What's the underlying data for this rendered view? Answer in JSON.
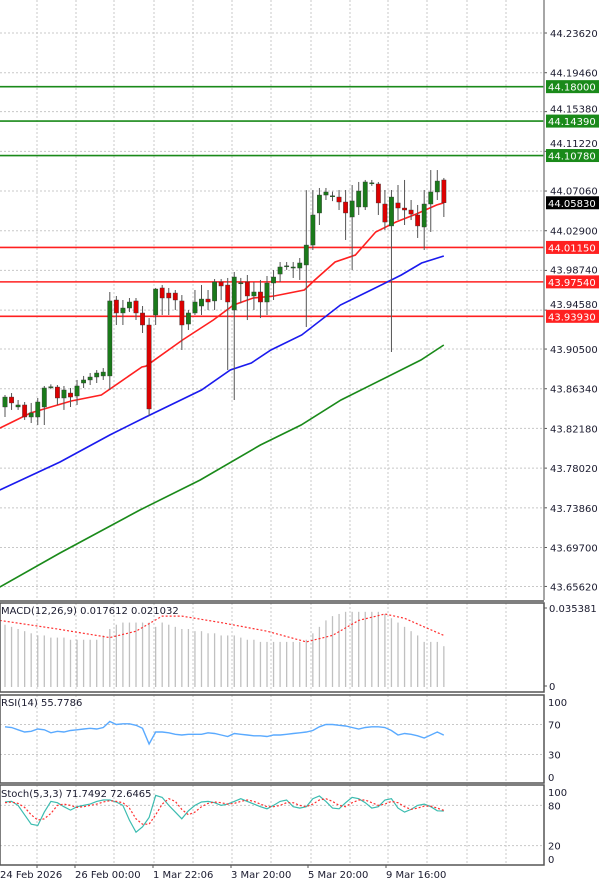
{
  "chart_data": [
    {
      "type": "candlestick",
      "title": "",
      "ylim": [
        43.642,
        44.2708
      ],
      "grid": true,
      "price_ticks": [
        "44.23620",
        "44.19460",
        "44.15380",
        "44.11220",
        "44.07060",
        "44.02900",
        "43.98740",
        "43.94580",
        "43.90500",
        "43.86340",
        "43.82180",
        "43.78020",
        "43.73860",
        "43.69700",
        "43.65620"
      ],
      "current_price": {
        "label": "44.05830",
        "value": 44.0583,
        "color": "#000000"
      },
      "levels": [
        {
          "label": "44.18000",
          "value": 44.18,
          "color": "#1a8a1a"
        },
        {
          "label": "44.14390",
          "value": 44.1439,
          "color": "#1a8a1a"
        },
        {
          "label": "44.10780",
          "value": 44.1078,
          "color": "#1a8a1a"
        },
        {
          "label": "44.01150",
          "value": 44.0115,
          "color": "#ff2020"
        },
        {
          "label": "43.97540",
          "value": 43.9754,
          "color": "#ff2020"
        },
        {
          "label": "43.93930",
          "value": 43.9393,
          "color": "#ff2020"
        }
      ],
      "candle_colors": {
        "up": "#1a7a1a",
        "down": "#dd0000",
        "wick": "#555555"
      },
      "candles_ohlc": [
        [
          43.8443,
          43.8568,
          43.8338,
          43.8547
        ],
        [
          43.8547,
          43.8589,
          43.8412,
          43.8485
        ],
        [
          43.8443,
          43.8516,
          43.8412,
          43.8464
        ],
        [
          43.8464,
          43.8495,
          43.8307,
          43.8338
        ],
        [
          43.8338,
          43.8485,
          43.8275,
          43.838
        ],
        [
          43.8338,
          43.8537,
          43.8254,
          43.8495
        ],
        [
          43.8443,
          43.8663,
          43.8254,
          43.8642
        ],
        [
          43.8652,
          43.868,
          43.863,
          43.8655
        ],
        [
          43.8652,
          43.8673,
          43.8464,
          43.8537
        ],
        [
          43.8537,
          43.8663,
          43.8412,
          43.8621
        ],
        [
          43.8589,
          43.8642,
          43.8443,
          43.8547
        ],
        [
          43.8558,
          43.8726,
          43.8464,
          43.8663
        ],
        [
          43.8694,
          43.8768,
          43.8642,
          43.8726
        ],
        [
          43.8726,
          43.8799,
          43.8673,
          43.8757
        ],
        [
          43.8757,
          43.883,
          43.8694,
          43.8799
        ],
        [
          43.8768,
          43.8851,
          43.8726,
          43.8809
        ],
        [
          43.8768,
          43.9648,
          43.8621,
          43.9554
        ],
        [
          43.9564,
          43.9606,
          43.9302,
          43.9428
        ],
        [
          43.9428,
          43.9564,
          43.9302,
          43.948
        ],
        [
          43.948,
          43.9585,
          43.9438,
          43.9543
        ],
        [
          43.9554,
          43.9585,
          43.9354,
          43.9428
        ],
        [
          43.9428,
          43.9501,
          43.9218,
          43.9302
        ],
        [
          43.9302,
          43.9375,
          43.8348,
          43.8422
        ],
        [
          43.9407,
          43.969,
          43.9302,
          43.9679
        ],
        [
          43.969,
          43.9721,
          43.9407,
          43.9585
        ],
        [
          43.9637,
          43.969,
          43.9407,
          43.9585
        ],
        [
          43.9637,
          43.9669,
          43.9459,
          43.9564
        ],
        [
          43.9554,
          43.9616,
          43.904,
          43.9302
        ],
        [
          43.9312,
          43.9459,
          43.925,
          43.9428
        ],
        [
          43.9428,
          43.9669,
          43.9407,
          43.9543
        ],
        [
          43.9501,
          43.9721,
          43.9407,
          43.9574
        ],
        [
          43.9574,
          43.9669,
          43.9459,
          43.9543
        ],
        [
          43.9554,
          43.9784,
          43.9459,
          43.9753
        ],
        [
          43.9753,
          43.9784,
          43.9564,
          43.9711
        ],
        [
          43.9721,
          43.9795,
          43.883,
          43.9543
        ],
        [
          43.9459,
          43.9858,
          43.8516,
          43.9805
        ],
        [
          43.9742,
          43.9795,
          43.953,
          43.9744
        ],
        [
          43.9753,
          43.9826,
          43.9354,
          43.9606
        ],
        [
          43.9606,
          43.9753,
          43.9459,
          43.9648
        ],
        [
          43.9648,
          43.9774,
          43.9375,
          43.9543
        ],
        [
          43.9543,
          43.9816,
          43.9407,
          43.9742
        ],
        [
          43.9742,
          43.9878,
          43.9564,
          43.9805
        ],
        [
          43.9836,
          43.9962,
          43.9753,
          43.991
        ],
        [
          43.992,
          43.9962,
          43.988,
          43.9922
        ],
        [
          43.9899,
          43.9962,
          43.9795,
          43.991
        ],
        [
          43.9899,
          44.0004,
          43.9774,
          43.9952
        ],
        [
          43.9931,
          44.0716,
          43.9281,
          44.014
        ],
        [
          44.014,
          44.0716,
          44.0088,
          44.0455
        ],
        [
          44.0476,
          44.0738,
          44.035,
          44.0664
        ],
        [
          44.0664,
          44.0738,
          44.0612,
          44.0696
        ],
        [
          44.0654,
          44.07,
          44.06,
          44.0656
        ],
        [
          44.0643,
          44.0717,
          44.0507,
          44.0591
        ],
        [
          44.0591,
          44.0717,
          44.0193,
          44.0476
        ],
        [
          44.0434,
          44.0769,
          43.9878,
          44.0602
        ],
        [
          44.0539,
          44.0801,
          44.0455,
          44.0706
        ],
        [
          44.0539,
          44.0822,
          44.0507,
          44.0801
        ],
        [
          44.079,
          44.0822,
          44.076,
          44.0792
        ],
        [
          44.078,
          44.0801,
          44.0455,
          44.0581
        ],
        [
          44.057,
          44.0717,
          44.0298,
          44.0381
        ],
        [
          44.034,
          44.0717,
          43.9019,
          44.0643
        ],
        [
          44.0581,
          44.0769,
          44.0402,
          44.0528
        ],
        [
          44.0528,
          44.0822,
          44.035,
          44.0507
        ],
        [
          44.0507,
          44.0612,
          44.0402,
          44.0465
        ],
        [
          44.0455,
          44.056,
          44.0214,
          44.034
        ],
        [
          44.0329,
          44.0717,
          44.0088,
          44.057
        ],
        [
          44.057,
          44.0926,
          44.0277,
          44.0696
        ],
        [
          44.0696,
          44.0926,
          44.0612,
          44.0811
        ],
        [
          44.0822,
          44.0843,
          44.0434,
          44.0583
        ]
      ],
      "moving_averages": [
        {
          "color": "#ff2020",
          "points": [
            [
              -0.8,
              43.8222
            ],
            [
              3.9,
              43.838
            ],
            [
              10.1,
              43.8506
            ],
            [
              14.7,
              43.8568
            ],
            [
              20.9,
              43.8862
            ],
            [
              21.5,
              43.887
            ],
            [
              27.1,
              43.9145
            ],
            [
              31.8,
              43.9354
            ],
            [
              34.9,
              43.9512
            ],
            [
              37.9,
              43.9585
            ],
            [
              41.1,
              43.9606
            ],
            [
              45.7,
              43.9669
            ],
            [
              47.3,
              43.9774
            ],
            [
              50.4,
              43.9962
            ],
            [
              53.5,
              44.0036
            ],
            [
              56.6,
              44.0277
            ],
            [
              59.7,
              44.0381
            ],
            [
              62.8,
              44.0465
            ],
            [
              65.9,
              44.056
            ],
            [
              67,
              44.0583
            ]
          ]
        },
        {
          "color": "#1a1aee",
          "points": [
            [
              -0.8,
              43.7573
            ],
            [
              8.4,
              43.7866
            ],
            [
              16,
              43.8149
            ],
            [
              21.5,
              43.8338
            ],
            [
              30,
              43.8621
            ],
            [
              34.4,
              43.883
            ],
            [
              37.6,
              43.8904
            ],
            [
              40.6,
              43.904
            ],
            [
              45.3,
              43.9197
            ],
            [
              51.2,
              43.9512
            ],
            [
              55.9,
              43.9669
            ],
            [
              60.5,
              43.9826
            ],
            [
              63.6,
              43.9952
            ],
            [
              67,
              44.0025
            ]
          ]
        },
        {
          "color": "#1a8a1a",
          "points": [
            [
              -0.8,
              43.6556
            ],
            [
              8.4,
              43.6913
            ],
            [
              20.6,
              43.7363
            ],
            [
              29.8,
              43.7678
            ],
            [
              39,
              43.8044
            ],
            [
              45.2,
              43.8254
            ],
            [
              51.3,
              43.8516
            ],
            [
              57.4,
              43.8726
            ],
            [
              63.5,
              43.8935
            ],
            [
              67,
              43.9092
            ]
          ]
        }
      ],
      "x_tick_labels": [
        "24 Feb 2026",
        "26 Feb 00:00",
        "1 Mar 22:06",
        "3 Mar 20:00",
        "5 Mar 20:00",
        "9 Mar 16:00"
      ]
    },
    {
      "type": "bar",
      "title": "MACD(12,26,9) 0.017612 0.021032",
      "ylim": [
        0,
        0.035381
      ],
      "tick_labels": [
        "0.035381",
        "0"
      ],
      "histogram_color": "#c0c0c0",
      "signal_color": "#ff3030",
      "histogram": [
        0.029,
        0.028,
        0.027,
        0.026,
        0.025,
        0.024,
        0.024,
        0.023,
        0.023,
        0.023,
        0.022,
        0.022,
        0.022,
        0.022,
        0.022,
        0.024,
        0.027,
        0.029,
        0.03,
        0.03,
        0.03,
        0.03,
        0.03,
        0.028,
        0.03,
        0.029,
        0.028,
        0.027,
        0.027,
        0.026,
        0.026,
        0.025,
        0.025,
        0.024,
        0.024,
        0.024,
        0.023,
        0.022,
        0.022,
        0.021,
        0.021,
        0.021,
        0.021,
        0.021,
        0.021,
        0.021,
        0.022,
        0.025,
        0.028,
        0.031,
        0.033,
        0.034,
        0.035,
        0.035,
        0.035,
        0.035,
        0.035,
        0.035,
        0.034,
        0.032,
        0.03,
        0.028,
        0.026,
        0.024,
        0.021,
        0.021,
        0.021,
        0.019
      ],
      "signal": [
        [
          -0.8,
          0.031
        ],
        [
          8,
          0.027
        ],
        [
          16,
          0.023
        ],
        [
          20,
          0.026
        ],
        [
          24,
          0.033
        ],
        [
          27,
          0.033
        ],
        [
          33,
          0.03
        ],
        [
          40,
          0.026
        ],
        [
          46,
          0.021
        ],
        [
          50,
          0.024
        ],
        [
          54,
          0.031
        ],
        [
          58,
          0.034
        ],
        [
          61,
          0.032
        ],
        [
          64,
          0.028
        ],
        [
          67,
          0.024
        ]
      ]
    },
    {
      "type": "line",
      "title": "RSI(14) 55.7786",
      "ylim": [
        0,
        100
      ],
      "tick_labels": [
        "100",
        "70",
        "30",
        "0"
      ],
      "levels": [
        70,
        30
      ],
      "color": "#5aaaff",
      "values": [
        67,
        66,
        63,
        60,
        61,
        64,
        63,
        59,
        61,
        60,
        62,
        63,
        64,
        65,
        64,
        66,
        74,
        70,
        71,
        71,
        69,
        65,
        44,
        60,
        60,
        59,
        57,
        56,
        57,
        57,
        57,
        59,
        58,
        56,
        54,
        58,
        57,
        56,
        55,
        55,
        54,
        56,
        56,
        57,
        58,
        59,
        60,
        62,
        67,
        70,
        70,
        69,
        68,
        66,
        64,
        66,
        67,
        67,
        66,
        62,
        56,
        58,
        57,
        55,
        52,
        56,
        60,
        55.8
      ]
    },
    {
      "type": "line",
      "title": "Stoch(5,3,3) 71.7492 72.6465",
      "ylim": [
        0,
        100
      ],
      "tick_labels": [
        "100",
        "80",
        "20",
        "0"
      ],
      "levels": [
        80,
        20
      ],
      "series": [
        {
          "color": "#3cbcb0",
          "values": [
            85,
            86,
            80,
            66,
            52,
            50,
            70,
            86,
            84,
            78,
            73,
            78,
            80,
            82,
            86,
            88,
            88,
            85,
            80,
            58,
            40,
            48,
            62,
            95,
            92,
            80,
            70,
            60,
            72,
            80,
            85,
            86,
            84,
            80,
            82,
            86,
            90,
            86,
            82,
            78,
            75,
            80,
            86,
            88,
            78,
            76,
            78,
            90,
            94,
            86,
            76,
            75,
            84,
            92,
            90,
            84,
            76,
            78,
            88,
            90,
            76,
            70,
            74,
            80,
            82,
            78,
            72,
            71.7
          ]
        },
        {
          "color": "#ff3030",
          "dashed": true,
          "values": [
            84,
            85,
            83,
            77,
            66,
            58,
            60,
            68,
            80,
            82,
            80,
            77,
            78,
            80,
            82,
            85,
            87,
            86,
            84,
            76,
            60,
            52,
            52,
            66,
            82,
            90,
            86,
            74,
            66,
            70,
            78,
            83,
            85,
            84,
            82,
            83,
            86,
            88,
            86,
            82,
            78,
            78,
            80,
            84,
            84,
            80,
            78,
            82,
            88,
            90,
            86,
            80,
            78,
            84,
            88,
            88,
            84,
            80,
            82,
            86,
            84,
            78,
            74,
            76,
            79,
            79,
            76,
            72.6
          ]
        }
      ]
    }
  ]
}
